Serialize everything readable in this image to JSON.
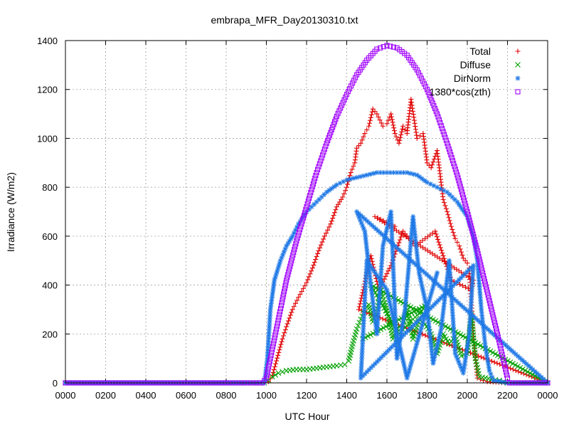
{
  "chart_data": {
    "type": "scatter",
    "title": "embrapa_MFR_Day20130310.txt",
    "xlabel": "UTC Hour",
    "ylabel": "Irradiance (W/m2)",
    "xlim": [
      0,
      24
    ],
    "ylim": [
      0,
      1400
    ],
    "x_ticks": [
      0,
      2,
      4,
      6,
      8,
      10,
      12,
      14,
      16,
      18,
      20,
      22,
      24
    ],
    "x_tick_labels": [
      "0000",
      "0200",
      "0400",
      "0600",
      "0800",
      "1000",
      "1200",
      "1400",
      "1600",
      "1800",
      "2000",
      "2200",
      "0000"
    ],
    "y_ticks": [
      0,
      200,
      400,
      600,
      800,
      1000,
      1200,
      1400
    ],
    "y_tick_labels": [
      "0",
      "200",
      "400",
      "600",
      "800",
      "1000",
      "1200",
      "1400"
    ],
    "grid": true,
    "legend_position": "top-right",
    "series": [
      {
        "name": "Total",
        "marker": "plus",
        "color": "#e00000",
        "points": [
          [
            0,
            0
          ],
          [
            2,
            0
          ],
          [
            4,
            0
          ],
          [
            6,
            0
          ],
          [
            8,
            0
          ],
          [
            9.9,
            0
          ],
          [
            10.1,
            5
          ],
          [
            10.3,
            30
          ],
          [
            10.5,
            90
          ],
          [
            10.8,
            180
          ],
          [
            11,
            230
          ],
          [
            11.3,
            300
          ],
          [
            11.6,
            350
          ],
          [
            12,
            410
          ],
          [
            12.3,
            470
          ],
          [
            12.6,
            540
          ],
          [
            12.9,
            600
          ],
          [
            13.2,
            650
          ],
          [
            13.5,
            720
          ],
          [
            13.8,
            760
          ],
          [
            14,
            800
          ],
          [
            14.2,
            860
          ],
          [
            14.4,
            900
          ],
          [
            14.5,
            960
          ],
          [
            14.7,
            980
          ],
          [
            14.9,
            1020
          ],
          [
            15.1,
            1050
          ],
          [
            15.3,
            1120
          ],
          [
            15.5,
            1100
          ],
          [
            15.8,
            1050
          ],
          [
            16,
            1060
          ],
          [
            16.2,
            1100
          ],
          [
            16.4,
            1020
          ],
          [
            16.6,
            980
          ],
          [
            16.8,
            1050
          ],
          [
            17,
            1020
          ],
          [
            17.2,
            1160
          ],
          [
            17.5,
            1000
          ],
          [
            17.8,
            1020
          ],
          [
            18,
            900
          ],
          [
            18.2,
            880
          ],
          [
            18.5,
            950
          ],
          [
            18.8,
            750
          ],
          [
            19,
            700
          ],
          [
            19.2,
            640
          ],
          [
            19.4,
            590
          ],
          [
            19.6,
            560
          ],
          [
            19.8,
            510
          ],
          [
            20,
            490
          ],
          [
            20.1,
            470
          ],
          [
            20.3,
            200
          ],
          [
            20.5,
            20
          ],
          [
            20.8,
            10
          ],
          [
            21,
            5
          ],
          [
            22,
            0
          ],
          [
            24,
            0
          ],
          [
            14.6,
            300
          ],
          [
            15.2,
            520
          ],
          [
            15.6,
            380
          ],
          [
            16.2,
            480
          ],
          [
            16.8,
            620
          ],
          [
            17.4,
            560
          ],
          [
            18.4,
            620
          ],
          [
            19.2,
            420
          ],
          [
            20.2,
            380
          ],
          [
            20.3,
            420
          ],
          [
            15.4,
            680
          ],
          [
            16.4,
            640
          ]
        ]
      },
      {
        "name": "Diffuse",
        "marker": "cross",
        "color": "#00a000",
        "points": [
          [
            0,
            0
          ],
          [
            2,
            0
          ],
          [
            4,
            0
          ],
          [
            6,
            0
          ],
          [
            8,
            0
          ],
          [
            9.9,
            0
          ],
          [
            10.1,
            10
          ],
          [
            10.3,
            25
          ],
          [
            10.6,
            40
          ],
          [
            11,
            50
          ],
          [
            11.5,
            55
          ],
          [
            12,
            55
          ],
          [
            12.5,
            60
          ],
          [
            13,
            65
          ],
          [
            13.5,
            70
          ],
          [
            13.9,
            75
          ],
          [
            14.1,
            90
          ],
          [
            14.3,
            160
          ],
          [
            14.5,
            220
          ],
          [
            14.7,
            260
          ],
          [
            14.9,
            300
          ],
          [
            15.1,
            320
          ],
          [
            15.3,
            250
          ],
          [
            15.5,
            290
          ],
          [
            15.7,
            380
          ],
          [
            15.9,
            330
          ],
          [
            16.1,
            260
          ],
          [
            16.3,
            180
          ],
          [
            16.5,
            220
          ],
          [
            16.8,
            240
          ],
          [
            17,
            300
          ],
          [
            17.3,
            180
          ],
          [
            17.6,
            260
          ],
          [
            17.9,
            240
          ],
          [
            18.2,
            200
          ],
          [
            18.5,
            120
          ],
          [
            18.8,
            200
          ],
          [
            19.1,
            160
          ],
          [
            19.4,
            190
          ],
          [
            19.7,
            110
          ],
          [
            20,
            120
          ],
          [
            20.2,
            280
          ],
          [
            20.4,
            100
          ],
          [
            20.6,
            25
          ],
          [
            20.9,
            20
          ],
          [
            21.2,
            15
          ],
          [
            21.6,
            10
          ],
          [
            22,
            0
          ],
          [
            24,
            0
          ],
          [
            15.2,
            400
          ],
          [
            16.6,
            200
          ],
          [
            18.0,
            320
          ],
          [
            14.8,
            180
          ]
        ]
      },
      {
        "name": "DirNorm",
        "marker": "star",
        "color": "#1e78e6",
        "points": [
          [
            0,
            0
          ],
          [
            2,
            0
          ],
          [
            4,
            0
          ],
          [
            6,
            0
          ],
          [
            8,
            0
          ],
          [
            9.9,
            0
          ],
          [
            10.05,
            100
          ],
          [
            10.2,
            300
          ],
          [
            10.4,
            420
          ],
          [
            10.7,
            500
          ],
          [
            11,
            560
          ],
          [
            11.3,
            600
          ],
          [
            11.6,
            650
          ],
          [
            12,
            700
          ],
          [
            12.5,
            740
          ],
          [
            13,
            780
          ],
          [
            13.5,
            810
          ],
          [
            14,
            830
          ],
          [
            14.5,
            840
          ],
          [
            15,
            850
          ],
          [
            15.5,
            860
          ],
          [
            16,
            860
          ],
          [
            16.5,
            860
          ],
          [
            17,
            860
          ],
          [
            17.5,
            850
          ],
          [
            18,
            820
          ],
          [
            18.5,
            800
          ],
          [
            19,
            780
          ],
          [
            19.5,
            740
          ],
          [
            20,
            680
          ],
          [
            20.3,
            600
          ],
          [
            20.5,
            500
          ],
          [
            20.7,
            300
          ],
          [
            20.9,
            150
          ],
          [
            21.1,
            50
          ],
          [
            21.3,
            10
          ],
          [
            22,
            0
          ],
          [
            24,
            0
          ],
          [
            14.5,
            700
          ],
          [
            14.9,
            620
          ],
          [
            15.2,
            400
          ],
          [
            15.5,
            200
          ],
          [
            15.8,
            560
          ],
          [
            16.2,
            700
          ],
          [
            16.5,
            100
          ],
          [
            16.9,
            300
          ],
          [
            17.3,
            680
          ],
          [
            17.6,
            450
          ],
          [
            18,
            300
          ],
          [
            18.3,
            80
          ],
          [
            18.7,
            220
          ],
          [
            19.1,
            500
          ],
          [
            19.4,
            120
          ],
          [
            19.8,
            40
          ],
          [
            20.1,
            200
          ],
          [
            20.3,
            480
          ],
          [
            14.7,
            20
          ],
          [
            15.0,
            500
          ],
          [
            16.0,
            380
          ],
          [
            17.0,
            20
          ],
          [
            18.5,
            450
          ]
        ]
      },
      {
        "name": "1380*cos(zth)",
        "marker": "square",
        "color": "#a000ff",
        "points": [
          [
            0,
            0
          ],
          [
            2,
            0
          ],
          [
            4,
            0
          ],
          [
            6,
            0
          ],
          [
            8,
            0
          ],
          [
            9.8,
            0
          ],
          [
            10,
            20
          ],
          [
            10.2,
            100
          ],
          [
            10.5,
            220
          ],
          [
            10.8,
            340
          ],
          [
            11,
            420
          ],
          [
            11.5,
            580
          ],
          [
            12,
            720
          ],
          [
            12.5,
            860
          ],
          [
            13,
            980
          ],
          [
            13.5,
            1090
          ],
          [
            14,
            1180
          ],
          [
            14.5,
            1260
          ],
          [
            15,
            1320
          ],
          [
            15.5,
            1365
          ],
          [
            16,
            1380
          ],
          [
            16.5,
            1370
          ],
          [
            17,
            1340
          ],
          [
            17.5,
            1280
          ],
          [
            18,
            1200
          ],
          [
            18.5,
            1100
          ],
          [
            19,
            980
          ],
          [
            19.5,
            850
          ],
          [
            20,
            700
          ],
          [
            20.5,
            540
          ],
          [
            21,
            370
          ],
          [
            21.5,
            200
          ],
          [
            22,
            20
          ],
          [
            22.1,
            0
          ],
          [
            24,
            0
          ]
        ]
      }
    ]
  }
}
